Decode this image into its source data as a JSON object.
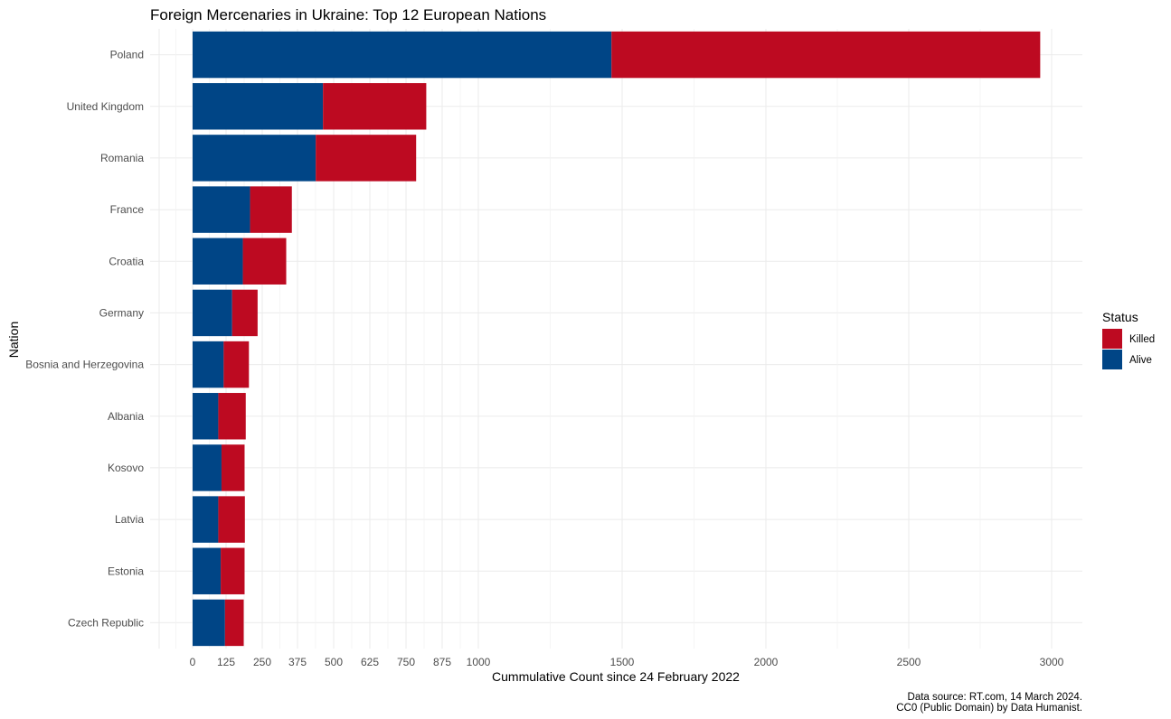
{
  "chart_data": {
    "type": "bar",
    "orientation": "horizontal",
    "stacked": true,
    "title": "Foreign Mercenaries in Ukraine: Top 12 European Nations",
    "xlabel": "Cummulative Count since 24 February 2022",
    "ylabel": "Nation",
    "categories": [
      "Poland",
      "United Kingdom",
      "Romania",
      "France",
      "Croatia",
      "Germany",
      "Bosnia and Herzegovina",
      "Albania",
      "Kosovo",
      "Latvia",
      "Estonia",
      "Czech Republic"
    ],
    "series": [
      {
        "name": "Alive",
        "color": "#004586",
        "values": [
          1463,
          463,
          438,
          208,
          183,
          146,
          116,
          96,
          108,
          96,
          105,
          121
        ]
      },
      {
        "name": "Killed",
        "color": "#bd0a21",
        "values": [
          1497,
          357,
          347,
          147,
          152,
          88,
          88,
          97,
          81,
          94,
          84,
          65
        ]
      }
    ],
    "xticks": [
      "0",
      "125",
      "250",
      "375",
      "500",
      "625",
      "750",
      "875",
      "1000",
      "1500",
      "2000",
      "2500",
      "3000"
    ],
    "xtick_values": [
      0,
      125,
      250,
      375,
      500,
      625,
      750,
      875,
      1000,
      1500,
      2000,
      2500,
      3000
    ],
    "xlim": [
      -125,
      3125
    ],
    "grid": true,
    "legend": {
      "title": "Status",
      "position": "right",
      "entries": [
        "Killed",
        "Alive"
      ]
    },
    "caption": [
      "Data source: RT.com, 14 March 2024.",
      "CC0 (Public Domain) by Data Humanist."
    ]
  }
}
